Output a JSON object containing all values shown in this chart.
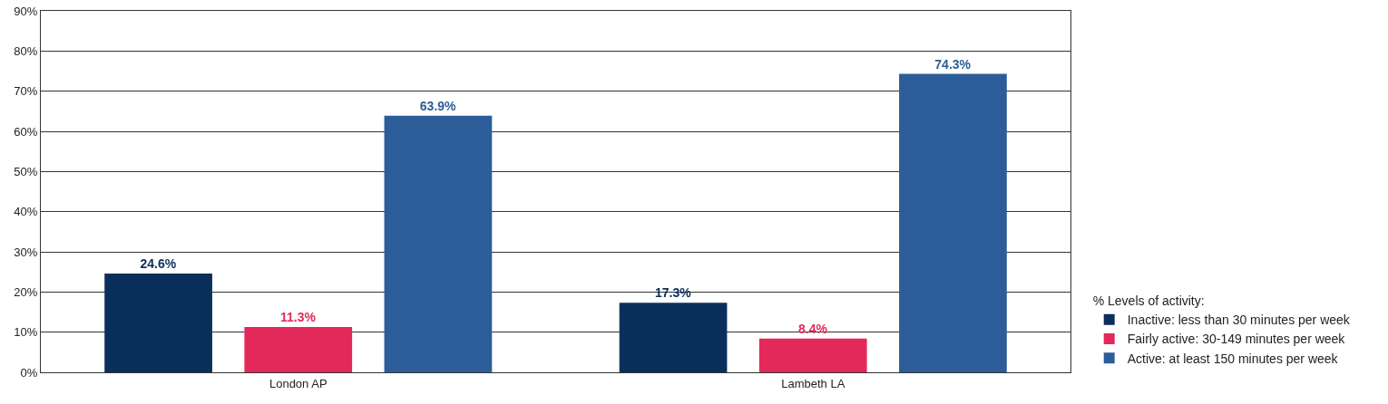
{
  "chart_data": {
    "type": "bar",
    "legend_title": "% Levels of activity:",
    "categories": [
      "London AP",
      "Lambeth LA"
    ],
    "series": [
      {
        "name": "Inactive: less than 30 minutes per week",
        "color": "#0b2f5b",
        "values": [
          24.6,
          17.3
        ],
        "value_labels": [
          "24.6%",
          "17.3%"
        ]
      },
      {
        "name": "Fairly active: 30-149 minutes per week",
        "color": "#e3295a",
        "values": [
          11.3,
          8.4
        ],
        "value_labels": [
          "11.3%",
          "8.4%"
        ]
      },
      {
        "name": "Active: at least 150 minutes per week",
        "color": "#2d5d98",
        "values": [
          63.9,
          74.3
        ],
        "value_labels": [
          "63.9%",
          "74.3%"
        ]
      }
    ],
    "ylim": [
      0,
      90
    ],
    "yticks": [
      {
        "value": 0,
        "label": "0%"
      },
      {
        "value": 10,
        "label": "10%"
      },
      {
        "value": 20,
        "label": "20%"
      },
      {
        "value": 30,
        "label": "30%"
      },
      {
        "value": 40,
        "label": "40%"
      },
      {
        "value": 50,
        "label": "50%"
      },
      {
        "value": 60,
        "label": "60%"
      },
      {
        "value": 70,
        "label": "70%"
      },
      {
        "value": 80,
        "label": "80%"
      },
      {
        "value": 90,
        "label": "90%"
      }
    ],
    "grid": "y",
    "legend": "right"
  }
}
